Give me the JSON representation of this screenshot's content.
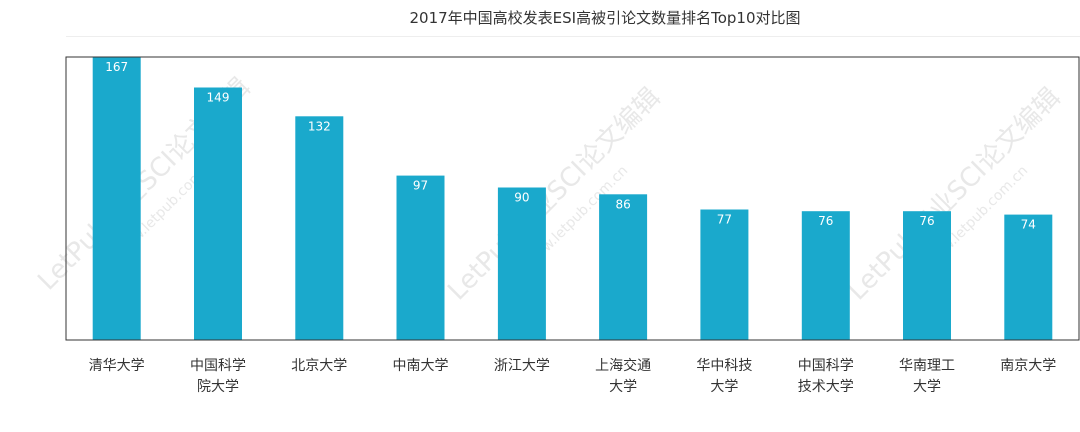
{
  "chart_data": {
    "type": "bar",
    "title": "2017年中国高校发表ESI高被引论文数量排名Top10对比图",
    "categories": [
      [
        "清华大学"
      ],
      [
        "中国科学",
        "院大学"
      ],
      [
        "北京大学"
      ],
      [
        "中南大学"
      ],
      [
        "浙江大学"
      ],
      [
        "上海交通",
        "大学"
      ],
      [
        "华中科技",
        "大学"
      ],
      [
        "中国科学",
        "技术大学"
      ],
      [
        "华南理工",
        "大学"
      ],
      [
        "南京大学"
      ]
    ],
    "values": [
      167,
      149,
      132,
      97,
      90,
      86,
      77,
      76,
      76,
      74
    ],
    "ylim": [
      0,
      167
    ],
    "grid": false,
    "legend": "none",
    "bar_color": "#1aa9cc",
    "label_color": "#ffffff",
    "axis_color": "#333333",
    "text_color": "#333333"
  },
  "watermark": {
    "text": "LetPub专业SCI论文编辑",
    "url": "www.letpub.com.cn",
    "color": "#e8e8e8"
  }
}
